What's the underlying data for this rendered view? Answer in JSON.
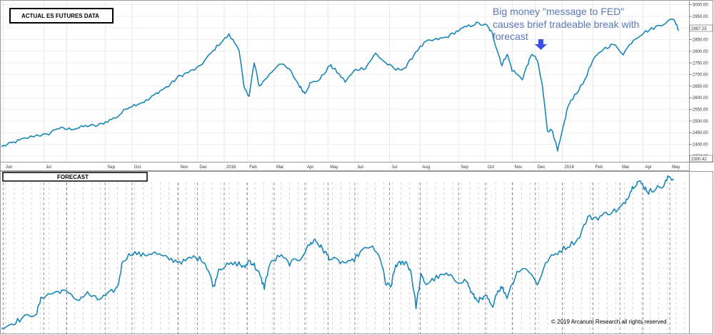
{
  "chart_data": [
    {
      "type": "line",
      "title": "ACTUAL ES FUTURES DATA",
      "series_color": "#1a86b5",
      "x_tick_labels": [
        "Jun",
        "Jul",
        "",
        "Sep",
        "Oct",
        "Nov",
        "Dec",
        "2018",
        "Feb",
        "Mar",
        "Apr",
        "May",
        "Jun",
        "Jul",
        "Aug",
        "Sep",
        "Oct",
        "Nov",
        "Dec",
        "2019",
        "Feb",
        "Mar",
        "Apr",
        "May"
      ],
      "y_tick_labels": [
        "3000.00",
        "2950.00",
        "2900.00",
        "2850.00",
        "2800.00",
        "2750.00",
        "2700.00",
        "2650.00",
        "2600.00",
        "2550.00",
        "2500.00",
        "2450.00",
        "2400.00",
        "2350.00"
      ],
      "ylim": [
        2325,
        3005
      ],
      "last_price_label": "2887.25",
      "min_price_label": "2300.42",
      "keypoints": [
        [
          0,
          2390
        ],
        [
          2,
          2405
        ],
        [
          4,
          2420
        ],
        [
          7,
          2440
        ],
        [
          9,
          2440
        ],
        [
          11,
          2470
        ],
        [
          13,
          2465
        ],
        [
          15,
          2470
        ],
        [
          17,
          2480
        ],
        [
          19,
          2480
        ],
        [
          21,
          2500
        ],
        [
          23,
          2520
        ],
        [
          25,
          2560
        ],
        [
          27,
          2575
        ],
        [
          29,
          2590
        ],
        [
          31,
          2625
        ],
        [
          33,
          2650
        ],
        [
          35,
          2690
        ],
        [
          37,
          2710
        ],
        [
          39,
          2730
        ],
        [
          41,
          2780
        ],
        [
          43,
          2830
        ],
        [
          45,
          2870
        ],
        [
          47,
          2810
        ],
        [
          48,
          2640
        ],
        [
          49,
          2610
        ],
        [
          50,
          2750
        ],
        [
          51,
          2650
        ],
        [
          53,
          2700
        ],
        [
          55,
          2750
        ],
        [
          57,
          2720
        ],
        [
          59,
          2650
        ],
        [
          60,
          2620
        ],
        [
          61,
          2660
        ],
        [
          63,
          2680
        ],
        [
          65,
          2740
        ],
        [
          66,
          2720
        ],
        [
          68,
          2670
        ],
        [
          70,
          2720
        ],
        [
          72,
          2730
        ],
        [
          74,
          2790
        ],
        [
          76,
          2750
        ],
        [
          78,
          2720
        ],
        [
          80,
          2730
        ],
        [
          82,
          2800
        ],
        [
          84,
          2840
        ],
        [
          86,
          2850
        ],
        [
          88,
          2860
        ],
        [
          90,
          2885
        ],
        [
          92,
          2905
        ],
        [
          94,
          2920
        ],
        [
          96,
          2910
        ],
        [
          97,
          2880
        ],
        [
          98,
          2810
        ],
        [
          99,
          2740
        ],
        [
          100,
          2790
        ],
        [
          101,
          2720
        ],
        [
          103,
          2680
        ],
        [
          104,
          2740
        ],
        [
          105,
          2790
        ],
        [
          106,
          2760
        ],
        [
          107,
          2650
        ],
        [
          108,
          2460
        ],
        [
          109,
          2460
        ],
        [
          110,
          2370
        ],
        [
          111,
          2460
        ],
        [
          112,
          2560
        ],
        [
          113,
          2600
        ],
        [
          115,
          2660
        ],
        [
          117,
          2760
        ],
        [
          119,
          2810
        ],
        [
          121,
          2830
        ],
        [
          123,
          2790
        ],
        [
          125,
          2850
        ],
        [
          127,
          2880
        ],
        [
          129,
          2900
        ],
        [
          131,
          2920
        ],
        [
          133,
          2940
        ],
        [
          134,
          2890
        ]
      ]
    },
    {
      "type": "line",
      "title": "FORECAST",
      "series_color": "#1a86b5",
      "x_range": [
        0,
        136
      ],
      "y_range": [
        0,
        100
      ],
      "keypoints": [
        [
          0,
          2
        ],
        [
          2,
          5
        ],
        [
          4,
          8
        ],
        [
          7,
          12
        ],
        [
          8,
          22
        ],
        [
          10,
          24
        ],
        [
          12,
          26
        ],
        [
          15,
          20
        ],
        [
          17,
          24
        ],
        [
          19,
          20
        ],
        [
          21,
          23
        ],
        [
          23,
          28
        ],
        [
          24,
          45
        ],
        [
          26,
          50
        ],
        [
          28,
          48
        ],
        [
          30,
          50
        ],
        [
          32,
          47
        ],
        [
          34,
          45
        ],
        [
          36,
          44
        ],
        [
          38,
          47
        ],
        [
          40,
          45
        ],
        [
          41,
          38
        ],
        [
          42,
          28
        ],
        [
          43,
          40
        ],
        [
          45,
          42
        ],
        [
          47,
          43
        ],
        [
          48,
          40
        ],
        [
          49,
          45
        ],
        [
          50,
          42
        ],
        [
          51,
          36
        ],
        [
          52,
          28
        ],
        [
          53,
          42
        ],
        [
          55,
          48
        ],
        [
          57,
          43
        ],
        [
          59,
          46
        ],
        [
          61,
          55
        ],
        [
          62,
          58
        ],
        [
          63,
          54
        ],
        [
          64,
          50
        ],
        [
          65,
          46
        ],
        [
          67,
          44
        ],
        [
          69,
          43
        ],
        [
          71,
          50
        ],
        [
          73,
          54
        ],
        [
          75,
          46
        ],
        [
          76,
          30
        ],
        [
          77,
          28
        ],
        [
          78,
          42
        ],
        [
          79,
          43
        ],
        [
          80,
          44
        ],
        [
          81,
          38
        ],
        [
          82,
          16
        ],
        [
          83,
          35
        ],
        [
          84,
          30
        ],
        [
          86,
          34
        ],
        [
          88,
          36
        ],
        [
          90,
          32
        ],
        [
          92,
          32
        ],
        [
          93,
          24
        ],
        [
          94,
          20
        ],
        [
          95,
          20
        ],
        [
          96,
          22
        ],
        [
          97,
          15
        ],
        [
          98,
          25
        ],
        [
          99,
          28
        ],
        [
          100,
          22
        ],
        [
          102,
          38
        ],
        [
          104,
          40
        ],
        [
          106,
          30
        ],
        [
          108,
          45
        ],
        [
          110,
          50
        ],
        [
          112,
          54
        ],
        [
          114,
          58
        ],
        [
          116,
          72
        ],
        [
          118,
          72
        ],
        [
          120,
          75
        ],
        [
          122,
          77
        ],
        [
          123,
          80
        ],
        [
          124,
          86
        ],
        [
          125,
          92
        ],
        [
          126,
          95
        ],
        [
          127,
          92
        ],
        [
          128,
          88
        ],
        [
          129,
          90
        ],
        [
          131,
          92
        ],
        [
          132,
          98
        ],
        [
          133,
          96
        ]
      ]
    }
  ],
  "annotation": {
    "line1": "Big money \"message to FED\"",
    "line2": "causes brief tradeable break with",
    "line3": "forecast",
    "arrow_color": "#3b4fe0"
  },
  "copyright": "© 2019 Arcanum Research all rights reserved"
}
